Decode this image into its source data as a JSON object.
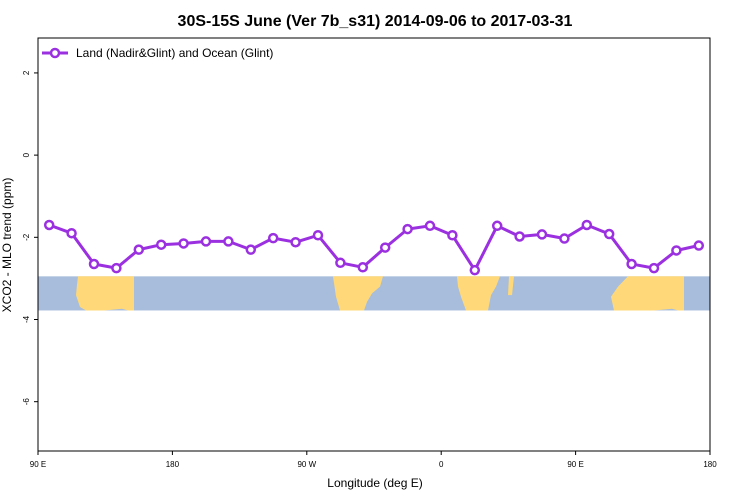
{
  "colors": {
    "series": "#9B30E0",
    "ocean": "#A7BDDB",
    "land": "#FFD979",
    "axis": "#000000",
    "background": "#FFFFFF"
  },
  "chart_data": {
    "type": "line",
    "title": "30S-15S June (Ver 7b_s31)   2014-09-06 to 2017-03-31",
    "xlabel": "Longitude (deg E)",
    "ylabel": "XCO2 - MLO trend (ppm)",
    "x_axis": {
      "range_deg_E": [
        90,
        540
      ],
      "ticks": [
        {
          "value": 90,
          "label": "90 E"
        },
        {
          "value": 180,
          "label": "180"
        },
        {
          "value": 270,
          "label": "90 W"
        },
        {
          "value": 360,
          "label": "0"
        },
        {
          "value": 450,
          "label": "90 E"
        },
        {
          "value": 540,
          "label": "180"
        }
      ]
    },
    "y_axis": {
      "range": [
        -7.2,
        2.85
      ],
      "ticks": [
        {
          "value": 2,
          "label": "2"
        },
        {
          "value": 0,
          "label": "0"
        },
        {
          "value": -2,
          "label": "-2"
        },
        {
          "value": -4,
          "label": "-4"
        },
        {
          "value": -6,
          "label": "-6"
        }
      ]
    },
    "map_strip": {
      "y_top": -2.95,
      "y_bottom": -3.78
    },
    "legend": {
      "position": "top-left",
      "entries": [
        "Land (Nadir&Glint) and Ocean (Glint)"
      ]
    },
    "series": [
      {
        "name": "Land (Nadir&Glint) and Ocean (Glint)",
        "x": [
          97.5,
          112.5,
          127.5,
          142.5,
          157.5,
          172.5,
          187.5,
          202.5,
          217.5,
          232.5,
          247.5,
          262.5,
          277.5,
          292.5,
          307.5,
          322.5,
          337.5,
          352.5,
          367.5,
          382.5,
          397.5,
          412.5,
          427.5,
          442.5,
          457.5,
          472.5,
          487.5,
          502.5,
          517.5,
          532.5
        ],
        "y": [
          -1.7,
          -1.9,
          -2.65,
          -2.75,
          -2.3,
          -2.18,
          -2.15,
          -2.1,
          -2.1,
          -2.3,
          -2.02,
          -2.12,
          -1.95,
          -2.62,
          -2.73,
          -2.25,
          -1.8,
          -1.72,
          -1.95,
          -2.8,
          -1.72,
          -1.98,
          -1.93,
          -2.03,
          -1.7,
          -1.92,
          -2.65,
          -2.75,
          -2.32,
          -2.2
        ]
      }
    ]
  }
}
